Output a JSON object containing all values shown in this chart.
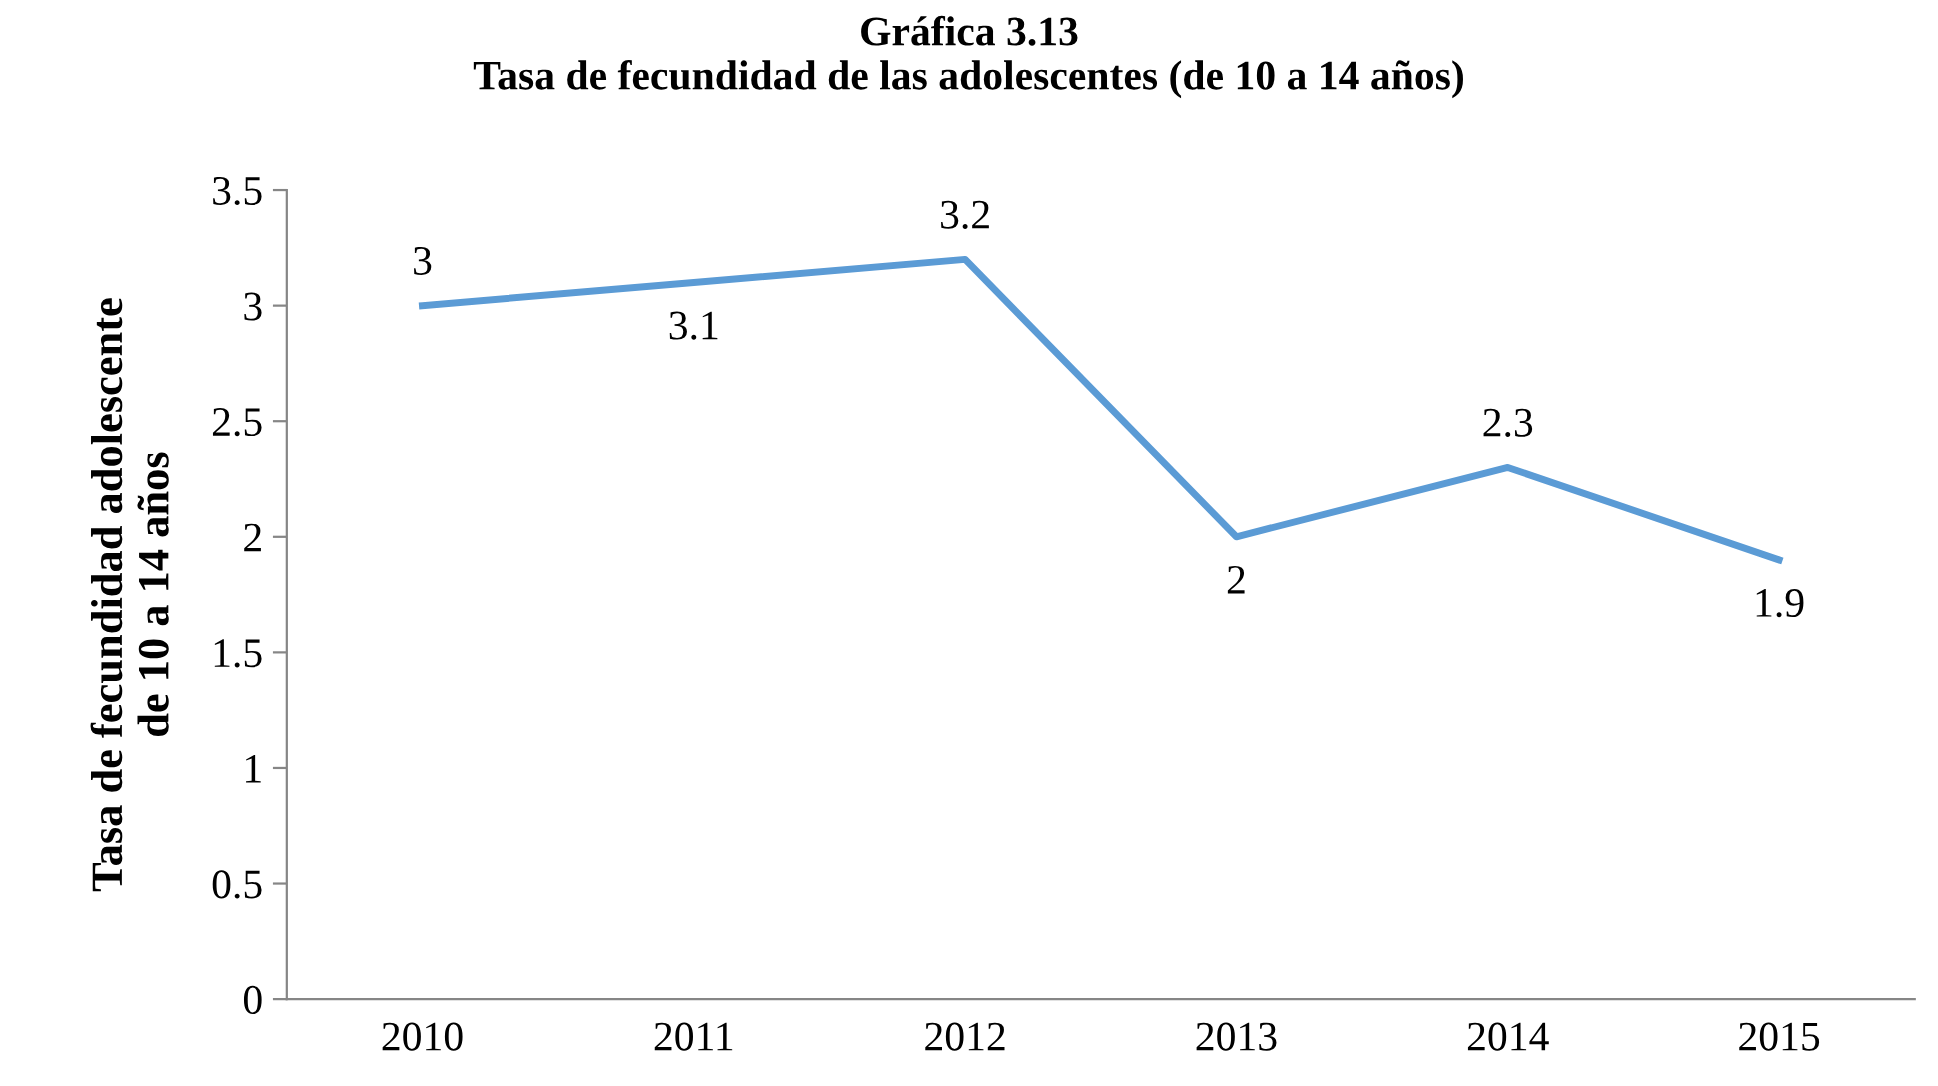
{
  "chart_data": {
    "type": "line",
    "title": "Gráfica 3.13\nTasa de fecundidad de las adolescentes (de 10 a 14 años)",
    "ylabel": "Tasa de fecundidad adolescente\nde 10 a 14 años",
    "categories": [
      "2010",
      "2011",
      "2012",
      "2013",
      "2014",
      "2015"
    ],
    "series": [
      {
        "color": "#5b9bd5",
        "values": [
          3,
          3.1,
          3.2,
          2,
          2.3,
          1.9
        ]
      }
    ],
    "ylim": [
      0,
      3.5
    ],
    "yticks": [
      0,
      0.5,
      1,
      1.5,
      2,
      2.5,
      3,
      3.5
    ],
    "data_labels": true,
    "grid": false,
    "marker": "none",
    "line_style": "solid"
  }
}
